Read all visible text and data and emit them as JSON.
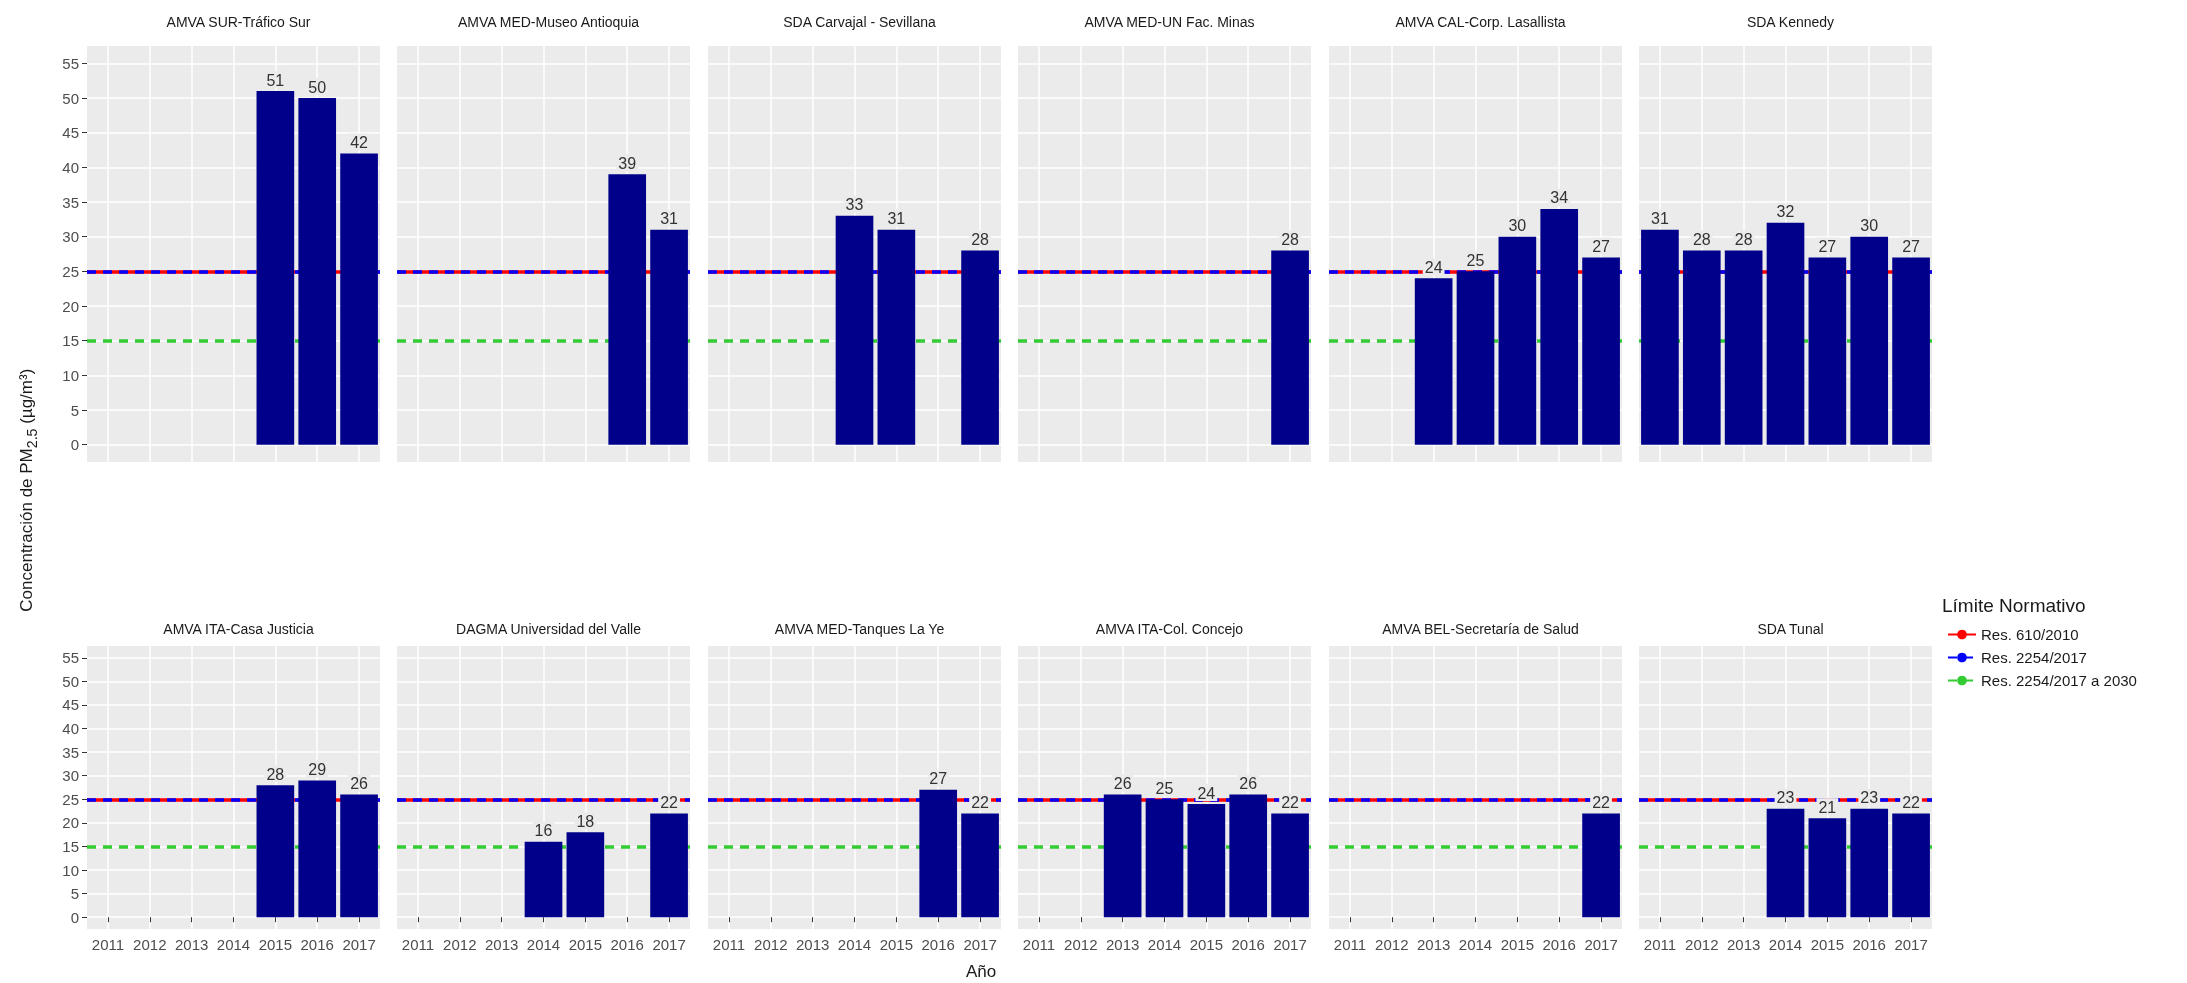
{
  "chart_data": [
    {
      "type": "bar",
      "title": "AMVA SUR-Tráfico Sur",
      "ylabel": "Concentración de PM$_{2.5}$ (µg/m³)",
      "categories": [
        "2011",
        "2012",
        "2013",
        "2014",
        "2015",
        "2016",
        "2017"
      ],
      "values": [
        null,
        null,
        null,
        null,
        51,
        50,
        42
      ],
      "color": "#00008b",
      "data_labels": true,
      "ylim": [
        -2.5,
        57.5
      ],
      "yticks": [
        0,
        5,
        10,
        15,
        20,
        25,
        30,
        35,
        40,
        45,
        50,
        55
      ],
      "grid": true,
      "tick_labels": "y",
      "ref_lines": [
        {
          "axis": "y",
          "value": 25,
          "color": "#ff0000",
          "line_style": "solid"
        },
        {
          "axis": "y",
          "value": 25,
          "color": "#0000ff",
          "line_style": "dashed"
        },
        {
          "axis": "y",
          "value": 15,
          "color": "#33cc33",
          "line_style": "dashed"
        }
      ]
    },
    {
      "type": "bar",
      "title": "AMVA MED-Museo Antioquia",
      "categories": [
        "2011",
        "2012",
        "2013",
        "2014",
        "2015",
        "2016",
        "2017"
      ],
      "values": [
        null,
        null,
        null,
        null,
        null,
        39,
        31
      ],
      "color": "#00008b",
      "data_labels": true,
      "ylim": [
        -2.5,
        57.5
      ],
      "yticks": [
        0,
        5,
        10,
        15,
        20,
        25,
        30,
        35,
        40,
        45,
        50,
        55
      ],
      "grid": true,
      "tick_labels": false,
      "ref_lines": [
        {
          "axis": "y",
          "value": 25,
          "color": "#ff0000",
          "line_style": "solid"
        },
        {
          "axis": "y",
          "value": 25,
          "color": "#0000ff",
          "line_style": "dashed"
        },
        {
          "axis": "y",
          "value": 15,
          "color": "#33cc33",
          "line_style": "dashed"
        }
      ]
    },
    {
      "type": "bar",
      "title": "SDA Carvajal - Sevillana",
      "categories": [
        "2011",
        "2012",
        "2013",
        "2014",
        "2015",
        "2016",
        "2017"
      ],
      "values": [
        null,
        null,
        null,
        33,
        31,
        null,
        28
      ],
      "color": "#00008b",
      "data_labels": true,
      "ylim": [
        -2.5,
        57.5
      ],
      "yticks": [
        0,
        5,
        10,
        15,
        20,
        25,
        30,
        35,
        40,
        45,
        50,
        55
      ],
      "grid": true,
      "tick_labels": false,
      "ref_lines": [
        {
          "axis": "y",
          "value": 25,
          "color": "#ff0000",
          "line_style": "solid"
        },
        {
          "axis": "y",
          "value": 25,
          "color": "#0000ff",
          "line_style": "dashed"
        },
        {
          "axis": "y",
          "value": 15,
          "color": "#33cc33",
          "line_style": "dashed"
        }
      ]
    },
    {
      "type": "bar",
      "title": "AMVA MED-UN Fac. Minas",
      "categories": [
        "2011",
        "2012",
        "2013",
        "2014",
        "2015",
        "2016",
        "2017"
      ],
      "values": [
        null,
        null,
        null,
        null,
        null,
        null,
        28
      ],
      "color": "#00008b",
      "data_labels": true,
      "ylim": [
        -2.5,
        57.5
      ],
      "yticks": [
        0,
        5,
        10,
        15,
        20,
        25,
        30,
        35,
        40,
        45,
        50,
        55
      ],
      "grid": true,
      "tick_labels": false,
      "ref_lines": [
        {
          "axis": "y",
          "value": 25,
          "color": "#ff0000",
          "line_style": "solid"
        },
        {
          "axis": "y",
          "value": 25,
          "color": "#0000ff",
          "line_style": "dashed"
        },
        {
          "axis": "y",
          "value": 15,
          "color": "#33cc33",
          "line_style": "dashed"
        }
      ]
    },
    {
      "type": "bar",
      "title": "AMVA CAL-Corp. Lasallista",
      "categories": [
        "2011",
        "2012",
        "2013",
        "2014",
        "2015",
        "2016",
        "2017"
      ],
      "values": [
        null,
        null,
        24,
        25,
        30,
        34,
        27
      ],
      "color": "#00008b",
      "data_labels": true,
      "ylim": [
        -2.5,
        57.5
      ],
      "yticks": [
        0,
        5,
        10,
        15,
        20,
        25,
        30,
        35,
        40,
        45,
        50,
        55
      ],
      "grid": true,
      "tick_labels": false,
      "ref_lines": [
        {
          "axis": "y",
          "value": 25,
          "color": "#ff0000",
          "line_style": "solid"
        },
        {
          "axis": "y",
          "value": 25,
          "color": "#0000ff",
          "line_style": "dashed"
        },
        {
          "axis": "y",
          "value": 15,
          "color": "#33cc33",
          "line_style": "dashed"
        }
      ]
    },
    {
      "type": "bar",
      "title": "SDA Kennedy",
      "legend_title": "Límite Normativo",
      "legend": "right",
      "categories": [
        "2011",
        "2012",
        "2013",
        "2014",
        "2015",
        "2016",
        "2017"
      ],
      "values": [
        31,
        28,
        28,
        32,
        27,
        30,
        27
      ],
      "color": "#00008b",
      "data_labels": true,
      "ylim": [
        -2.5,
        57.5
      ],
      "yticks": [
        0,
        5,
        10,
        15,
        20,
        25,
        30,
        35,
        40,
        45,
        50,
        55
      ],
      "grid": true,
      "tick_labels": false,
      "ref_lines": [
        {
          "axis": "y",
          "value": 25,
          "color": "#ff0000",
          "line_style": "solid",
          "label": "Res. 610/2010"
        },
        {
          "axis": "y",
          "value": 25,
          "color": "#0000ff",
          "line_style": "dashed",
          "label": "Res. 2254/2017"
        },
        {
          "axis": "y",
          "value": 15,
          "color": "#33cc33",
          "line_style": "dashed",
          "label": "Res. 2254/2017 a 2030"
        }
      ]
    },
    {
      "type": "bar",
      "title": "AMVA ITA-Casa Justicia",
      "categories": [
        "2011",
        "2012",
        "2013",
        "2014",
        "2015",
        "2016",
        "2017"
      ],
      "values": [
        null,
        null,
        null,
        null,
        28,
        29,
        26
      ],
      "color": "#00008b",
      "data_labels": true,
      "ylim": [
        -2.5,
        57.5
      ],
      "yticks": [
        0,
        5,
        10,
        15,
        20,
        25,
        30,
        35,
        40,
        45,
        50,
        55
      ],
      "grid": true,
      "ref_lines": [
        {
          "axis": "y",
          "value": 25,
          "color": "#ff0000",
          "line_style": "solid"
        },
        {
          "axis": "y",
          "value": 25,
          "color": "#0000ff",
          "line_style": "dashed"
        },
        {
          "axis": "y",
          "value": 15,
          "color": "#33cc33",
          "line_style": "dashed"
        }
      ]
    },
    {
      "type": "bar",
      "title": "DAGMA Universidad del Valle",
      "categories": [
        "2011",
        "2012",
        "2013",
        "2014",
        "2015",
        "2016",
        "2017"
      ],
      "values": [
        null,
        null,
        null,
        16,
        18,
        null,
        22
      ],
      "color": "#00008b",
      "data_labels": true,
      "ylim": [
        -2.5,
        57.5
      ],
      "yticks": [
        0,
        5,
        10,
        15,
        20,
        25,
        30,
        35,
        40,
        45,
        50,
        55
      ],
      "grid": true,
      "tick_labels": "x",
      "ref_lines": [
        {
          "axis": "y",
          "value": 25,
          "color": "#ff0000",
          "line_style": "solid"
        },
        {
          "axis": "y",
          "value": 25,
          "color": "#0000ff",
          "line_style": "dashed"
        },
        {
          "axis": "y",
          "value": 15,
          "color": "#33cc33",
          "line_style": "dashed"
        }
      ]
    },
    {
      "type": "bar",
      "title": "AMVA MED-Tanques La Ye",
      "xlabel": "Año",
      "categories": [
        "2011",
        "2012",
        "2013",
        "2014",
        "2015",
        "2016",
        "2017"
      ],
      "values": [
        null,
        null,
        null,
        null,
        null,
        27,
        22
      ],
      "color": "#00008b",
      "data_labels": true,
      "ylim": [
        -2.5,
        57.5
      ],
      "yticks": [
        0,
        5,
        10,
        15,
        20,
        25,
        30,
        35,
        40,
        45,
        50,
        55
      ],
      "grid": true,
      "tick_labels": "x",
      "ref_lines": [
        {
          "axis": "y",
          "value": 25,
          "color": "#ff0000",
          "line_style": "solid"
        },
        {
          "axis": "y",
          "value": 25,
          "color": "#0000ff",
          "line_style": "dashed"
        },
        {
          "axis": "y",
          "value": 15,
          "color": "#33cc33",
          "line_style": "dashed"
        }
      ]
    },
    {
      "type": "bar",
      "title": "AMVA ITA-Col. Concejo",
      "categories": [
        "2011",
        "2012",
        "2013",
        "2014",
        "2015",
        "2016",
        "2017"
      ],
      "values": [
        null,
        null,
        26,
        25,
        24,
        26,
        22
      ],
      "color": "#00008b",
      "data_labels": true,
      "ylim": [
        -2.5,
        57.5
      ],
      "yticks": [
        0,
        5,
        10,
        15,
        20,
        25,
        30,
        35,
        40,
        45,
        50,
        55
      ],
      "grid": true,
      "tick_labels": "x",
      "ref_lines": [
        {
          "axis": "y",
          "value": 25,
          "color": "#ff0000",
          "line_style": "solid"
        },
        {
          "axis": "y",
          "value": 25,
          "color": "#0000ff",
          "line_style": "dashed"
        },
        {
          "axis": "y",
          "value": 15,
          "color": "#33cc33",
          "line_style": "dashed"
        }
      ]
    },
    {
      "type": "bar",
      "title": "AMVA BEL-Secretaría de Salud",
      "categories": [
        "2011",
        "2012",
        "2013",
        "2014",
        "2015",
        "2016",
        "2017"
      ],
      "values": [
        null,
        null,
        null,
        null,
        null,
        null,
        22
      ],
      "color": "#00008b",
      "data_labels": true,
      "ylim": [
        -2.5,
        57.5
      ],
      "yticks": [
        0,
        5,
        10,
        15,
        20,
        25,
        30,
        35,
        40,
        45,
        50,
        55
      ],
      "grid": true,
      "tick_labels": "x",
      "ref_lines": [
        {
          "axis": "y",
          "value": 25,
          "color": "#ff0000",
          "line_style": "solid"
        },
        {
          "axis": "y",
          "value": 25,
          "color": "#0000ff",
          "line_style": "dashed"
        },
        {
          "axis": "y",
          "value": 15,
          "color": "#33cc33",
          "line_style": "dashed"
        }
      ]
    },
    {
      "type": "bar",
      "title": "SDA Tunal",
      "categories": [
        "2011",
        "2012",
        "2013",
        "2014",
        "2015",
        "2016",
        "2017"
      ],
      "values": [
        null,
        null,
        null,
        23,
        21,
        23,
        22
      ],
      "color": "#00008b",
      "data_labels": true,
      "ylim": [
        -2.5,
        57.5
      ],
      "yticks": [
        0,
        5,
        10,
        15,
        20,
        25,
        30,
        35,
        40,
        45,
        50,
        55
      ],
      "grid": true,
      "tick_labels": "x",
      "ref_lines": [
        {
          "axis": "y",
          "value": 25,
          "color": "#ff0000",
          "line_style": "solid"
        },
        {
          "axis": "y",
          "value": 25,
          "color": "#0000ff",
          "line_style": "dashed"
        },
        {
          "axis": "y",
          "value": 15,
          "color": "#33cc33",
          "line_style": "dashed"
        }
      ]
    }
  ]
}
